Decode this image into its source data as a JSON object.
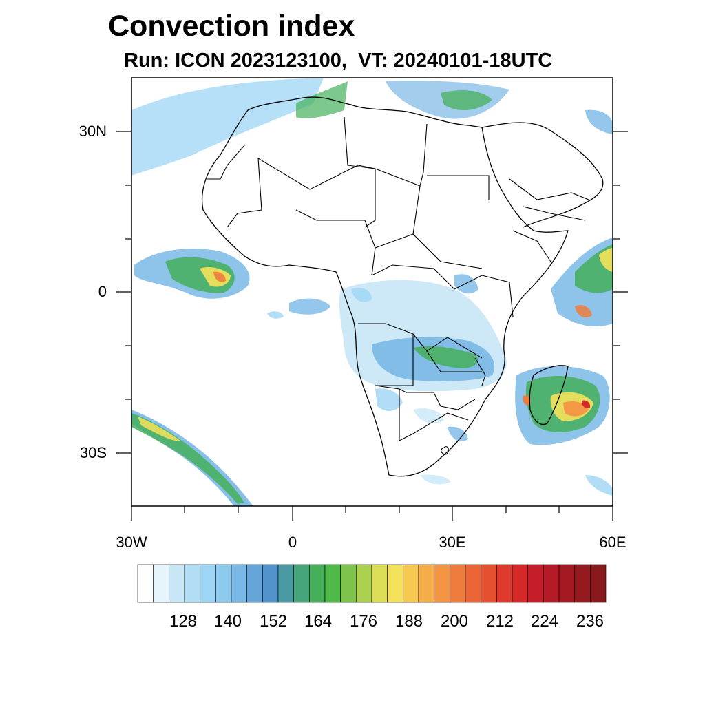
{
  "title": "Convection index",
  "subtitle": "Run: ICON 2023123100,  VT: 20240101-18UTC",
  "map": {
    "region": "Africa",
    "lat_labels": [
      "30N",
      "0",
      "30S"
    ],
    "lon_labels": [
      "30W",
      "0",
      "30E",
      "60E"
    ]
  },
  "colorbar": {
    "labels": [
      "128",
      "140",
      "152",
      "164",
      "176",
      "188",
      "200",
      "212",
      "224",
      "236"
    ],
    "colors": [
      "#ffffff",
      "#e6f4fb",
      "#c8e7f6",
      "#b2def5",
      "#9dd6f4",
      "#8ccaee",
      "#7ab8e6",
      "#66a5da",
      "#5393cc",
      "#4a9aa4",
      "#46a57a",
      "#45af5a",
      "#4fba48",
      "#7ec34c",
      "#acd04f",
      "#dcdd57",
      "#f4e25a",
      "#f8c951",
      "#f5ad4a",
      "#f39543",
      "#ef7c3c",
      "#eb6535",
      "#e5502f",
      "#dd3a2b",
      "#d42829",
      "#c51e2a",
      "#b41b27",
      "#a31a23",
      "#941a20",
      "#861a1d"
    ]
  },
  "colors": {
    "background": "#ffffff",
    "border": "#000000"
  }
}
